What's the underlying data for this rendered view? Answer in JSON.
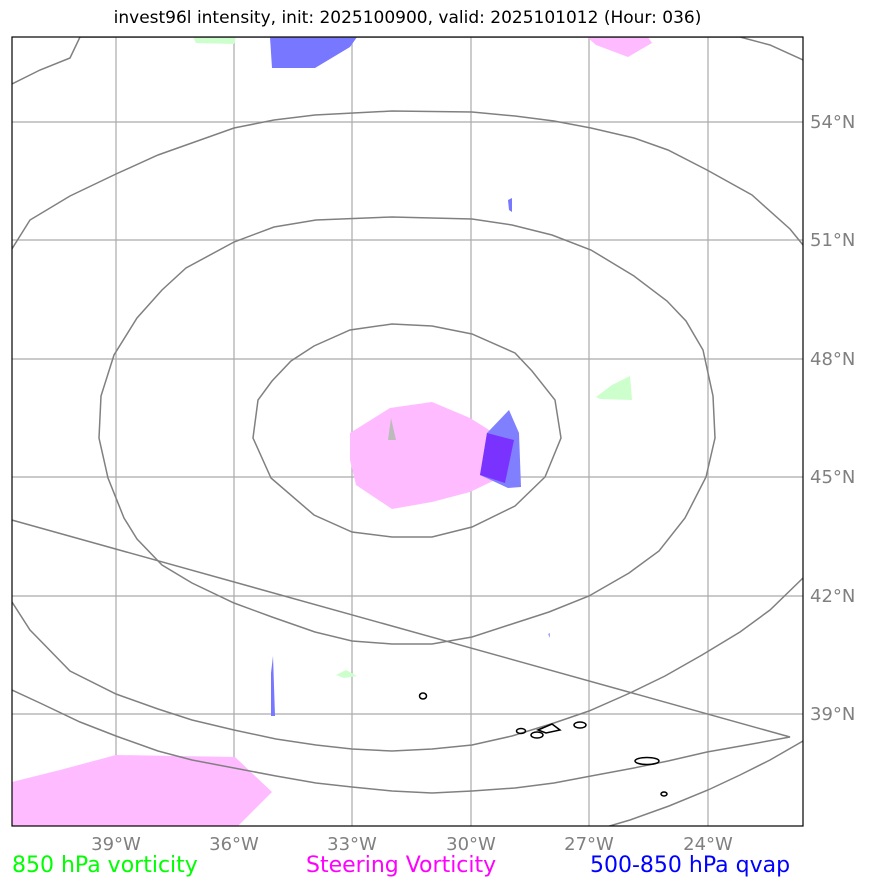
{
  "title": "invest96l intensity, init: 2025100900, valid: 2025101012 (Hour: 036)",
  "map": {
    "lon_labels": [
      "39°W",
      "36°W",
      "33°W",
      "30°W",
      "27°W",
      "24°W"
    ],
    "lat_labels": [
      "54°N",
      "51°N",
      "48°N",
      "45°N",
      "42°N",
      "39°N"
    ],
    "lon_values": [
      -39,
      -36,
      -33,
      -30,
      -27,
      -24
    ],
    "lat_values": [
      54,
      51,
      48,
      45,
      42,
      39
    ],
    "grid_color": "#aaaaaa",
    "contour_color": "#808080",
    "fields": {
      "vorticity_850": "#ccffcc",
      "steering_vorticity": "#ffbbff",
      "qvap_500_850": "#7777ff"
    }
  },
  "legend": {
    "vorticity_850": "850 hPa vorticity",
    "steering_vorticity": "Steering Vorticity",
    "qvap_500_850": "500-850 hPa qvap"
  },
  "colors": {
    "vorticity_850": "#00ff00",
    "steering_vorticity": "#ff00ff",
    "qvap_500_850": "#0000ff"
  }
}
